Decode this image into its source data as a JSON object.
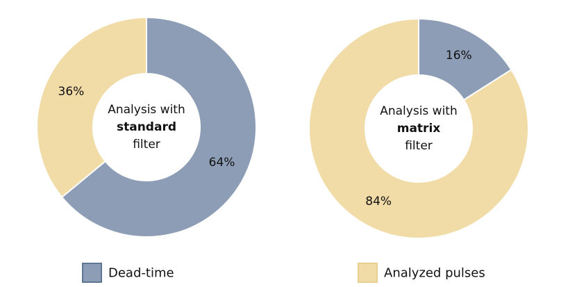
{
  "chart_data": [
    {
      "type": "pie",
      "center_lines": [
        {
          "text": "Analysis with",
          "bold": false
        },
        {
          "text": "standard",
          "bold": true
        },
        {
          "text": "filter",
          "bold": false
        }
      ],
      "slices": [
        {
          "series": "Dead-time",
          "value": 64,
          "label": "64%"
        },
        {
          "series": "Analyzed pulses",
          "value": 36,
          "label": "36%"
        }
      ]
    },
    {
      "type": "pie",
      "center_lines": [
        {
          "text": "Analysis with",
          "bold": false
        },
        {
          "text": "matrix",
          "bold": true
        },
        {
          "text": "filter",
          "bold": false
        }
      ],
      "slices": [
        {
          "series": "Dead-time",
          "value": 16,
          "label": "16%"
        },
        {
          "series": "Analyzed pulses",
          "value": 84,
          "label": "84%"
        }
      ]
    }
  ],
  "legend": {
    "placement": "bottom",
    "items": [
      {
        "series": "Dead-time",
        "label": "Dead-time",
        "color": "#8c9db5",
        "edge": "#5f7594"
      },
      {
        "series": "Analyzed pulses",
        "label": "Analyzed pulses",
        "color": "#f1dca7",
        "edge": "#e8cf8e"
      }
    ]
  }
}
